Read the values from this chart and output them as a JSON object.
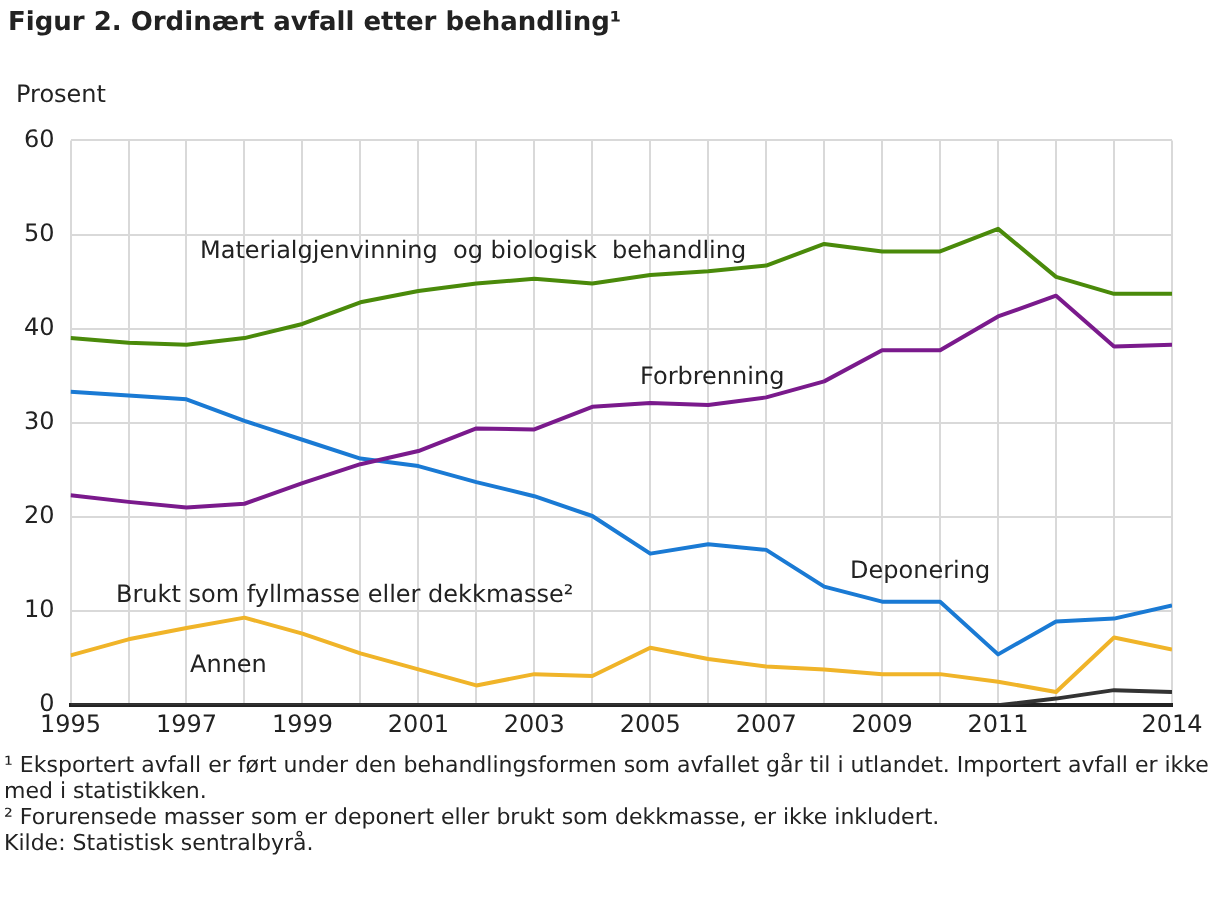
{
  "chart_data": {
    "type": "line",
    "title": "Figur 2. Ordinært avfall etter behandling¹",
    "ylabel": "Prosent",
    "x": [
      1995,
      1996,
      1997,
      1998,
      1999,
      2000,
      2001,
      2002,
      2003,
      2004,
      2005,
      2006,
      2007,
      2008,
      2009,
      2010,
      2011,
      2012,
      2013,
      2014
    ],
    "series": [
      {
        "name": "Materialgjenvinning  og biologisk  behandling",
        "color": "#4a8a0a",
        "values": [
          39,
          38.5,
          38.3,
          39,
          40.5,
          42.8,
          44,
          44.8,
          45.3,
          44.8,
          45.7,
          46.1,
          46.7,
          49,
          48.2,
          48.2,
          50.6,
          45.5,
          43.7,
          43.7
        ]
      },
      {
        "name": "Forbrenning",
        "color": "#7a1a8c",
        "values": [
          22.3,
          21.6,
          21,
          21.4,
          23.6,
          25.6,
          27,
          29.4,
          29.3,
          31.7,
          32.1,
          31.9,
          32.7,
          34.4,
          37.7,
          37.7,
          41.3,
          43.5,
          38.1,
          38.3
        ]
      },
      {
        "name": "Deponering",
        "color": "#1a7ad4",
        "values": [
          33.3,
          32.9,
          32.5,
          30.2,
          28.2,
          26.2,
          25.4,
          23.7,
          22.2,
          20.1,
          16.1,
          17.1,
          16.5,
          12.6,
          11,
          11,
          5.4,
          8.9,
          9.2,
          10.6
        ]
      },
      {
        "name": "Brukt som fyllmasse eller dekkmasse²",
        "color": "#f0b429",
        "values": [
          5.3,
          7,
          8.2,
          9.3,
          7.6,
          5.5,
          3.8,
          2.1,
          3.3,
          3.1,
          6.1,
          4.9,
          4.1,
          3.8,
          3.3,
          3.3,
          2.5,
          1.4,
          7.2,
          5.9
        ]
      },
      {
        "name": "Annen",
        "color": "#333333",
        "values": [
          0,
          0,
          0,
          0,
          0,
          0,
          0,
          0,
          0,
          0,
          0,
          0,
          0,
          0,
          0,
          0,
          0,
          0.7,
          1.6,
          1.4
        ]
      }
    ],
    "xlim": [
      1995,
      2014
    ],
    "xticks": [
      1995,
      {
        "value": 1996,
        "label": null
      },
      1997,
      {
        "value": 1998,
        "label": null
      },
      1999,
      {
        "value": 2000,
        "label": null
      },
      2001,
      {
        "value": 2002,
        "label": null
      },
      2003,
      {
        "value": 2004,
        "label": null
      },
      2005,
      {
        "value": 2006,
        "label": null
      },
      2007,
      {
        "value": 2008,
        "label": null
      },
      2009,
      {
        "value": 2010,
        "label": null
      },
      2011,
      {
        "value": 2012,
        "label": null
      },
      {
        "value": 2013,
        "label": null
      },
      2014
    ],
    "ylim": [
      0,
      60
    ],
    "yticks": [
      0,
      10,
      20,
      30,
      40,
      50,
      60
    ],
    "grid": true,
    "legend": false,
    "marker": "none",
    "line_style": "solid",
    "annotations": [
      "¹ Eksportert avfall er ført under den behandlingsformen  som avfallet går til i utlandet.  Importert avfall er ikke med i statistikken.",
      "² Forurensede masser som er deponert eller brukt som dekkmasse, er ikke inkludert.",
      "Kilde: Statistisk sentralbyrå."
    ]
  }
}
